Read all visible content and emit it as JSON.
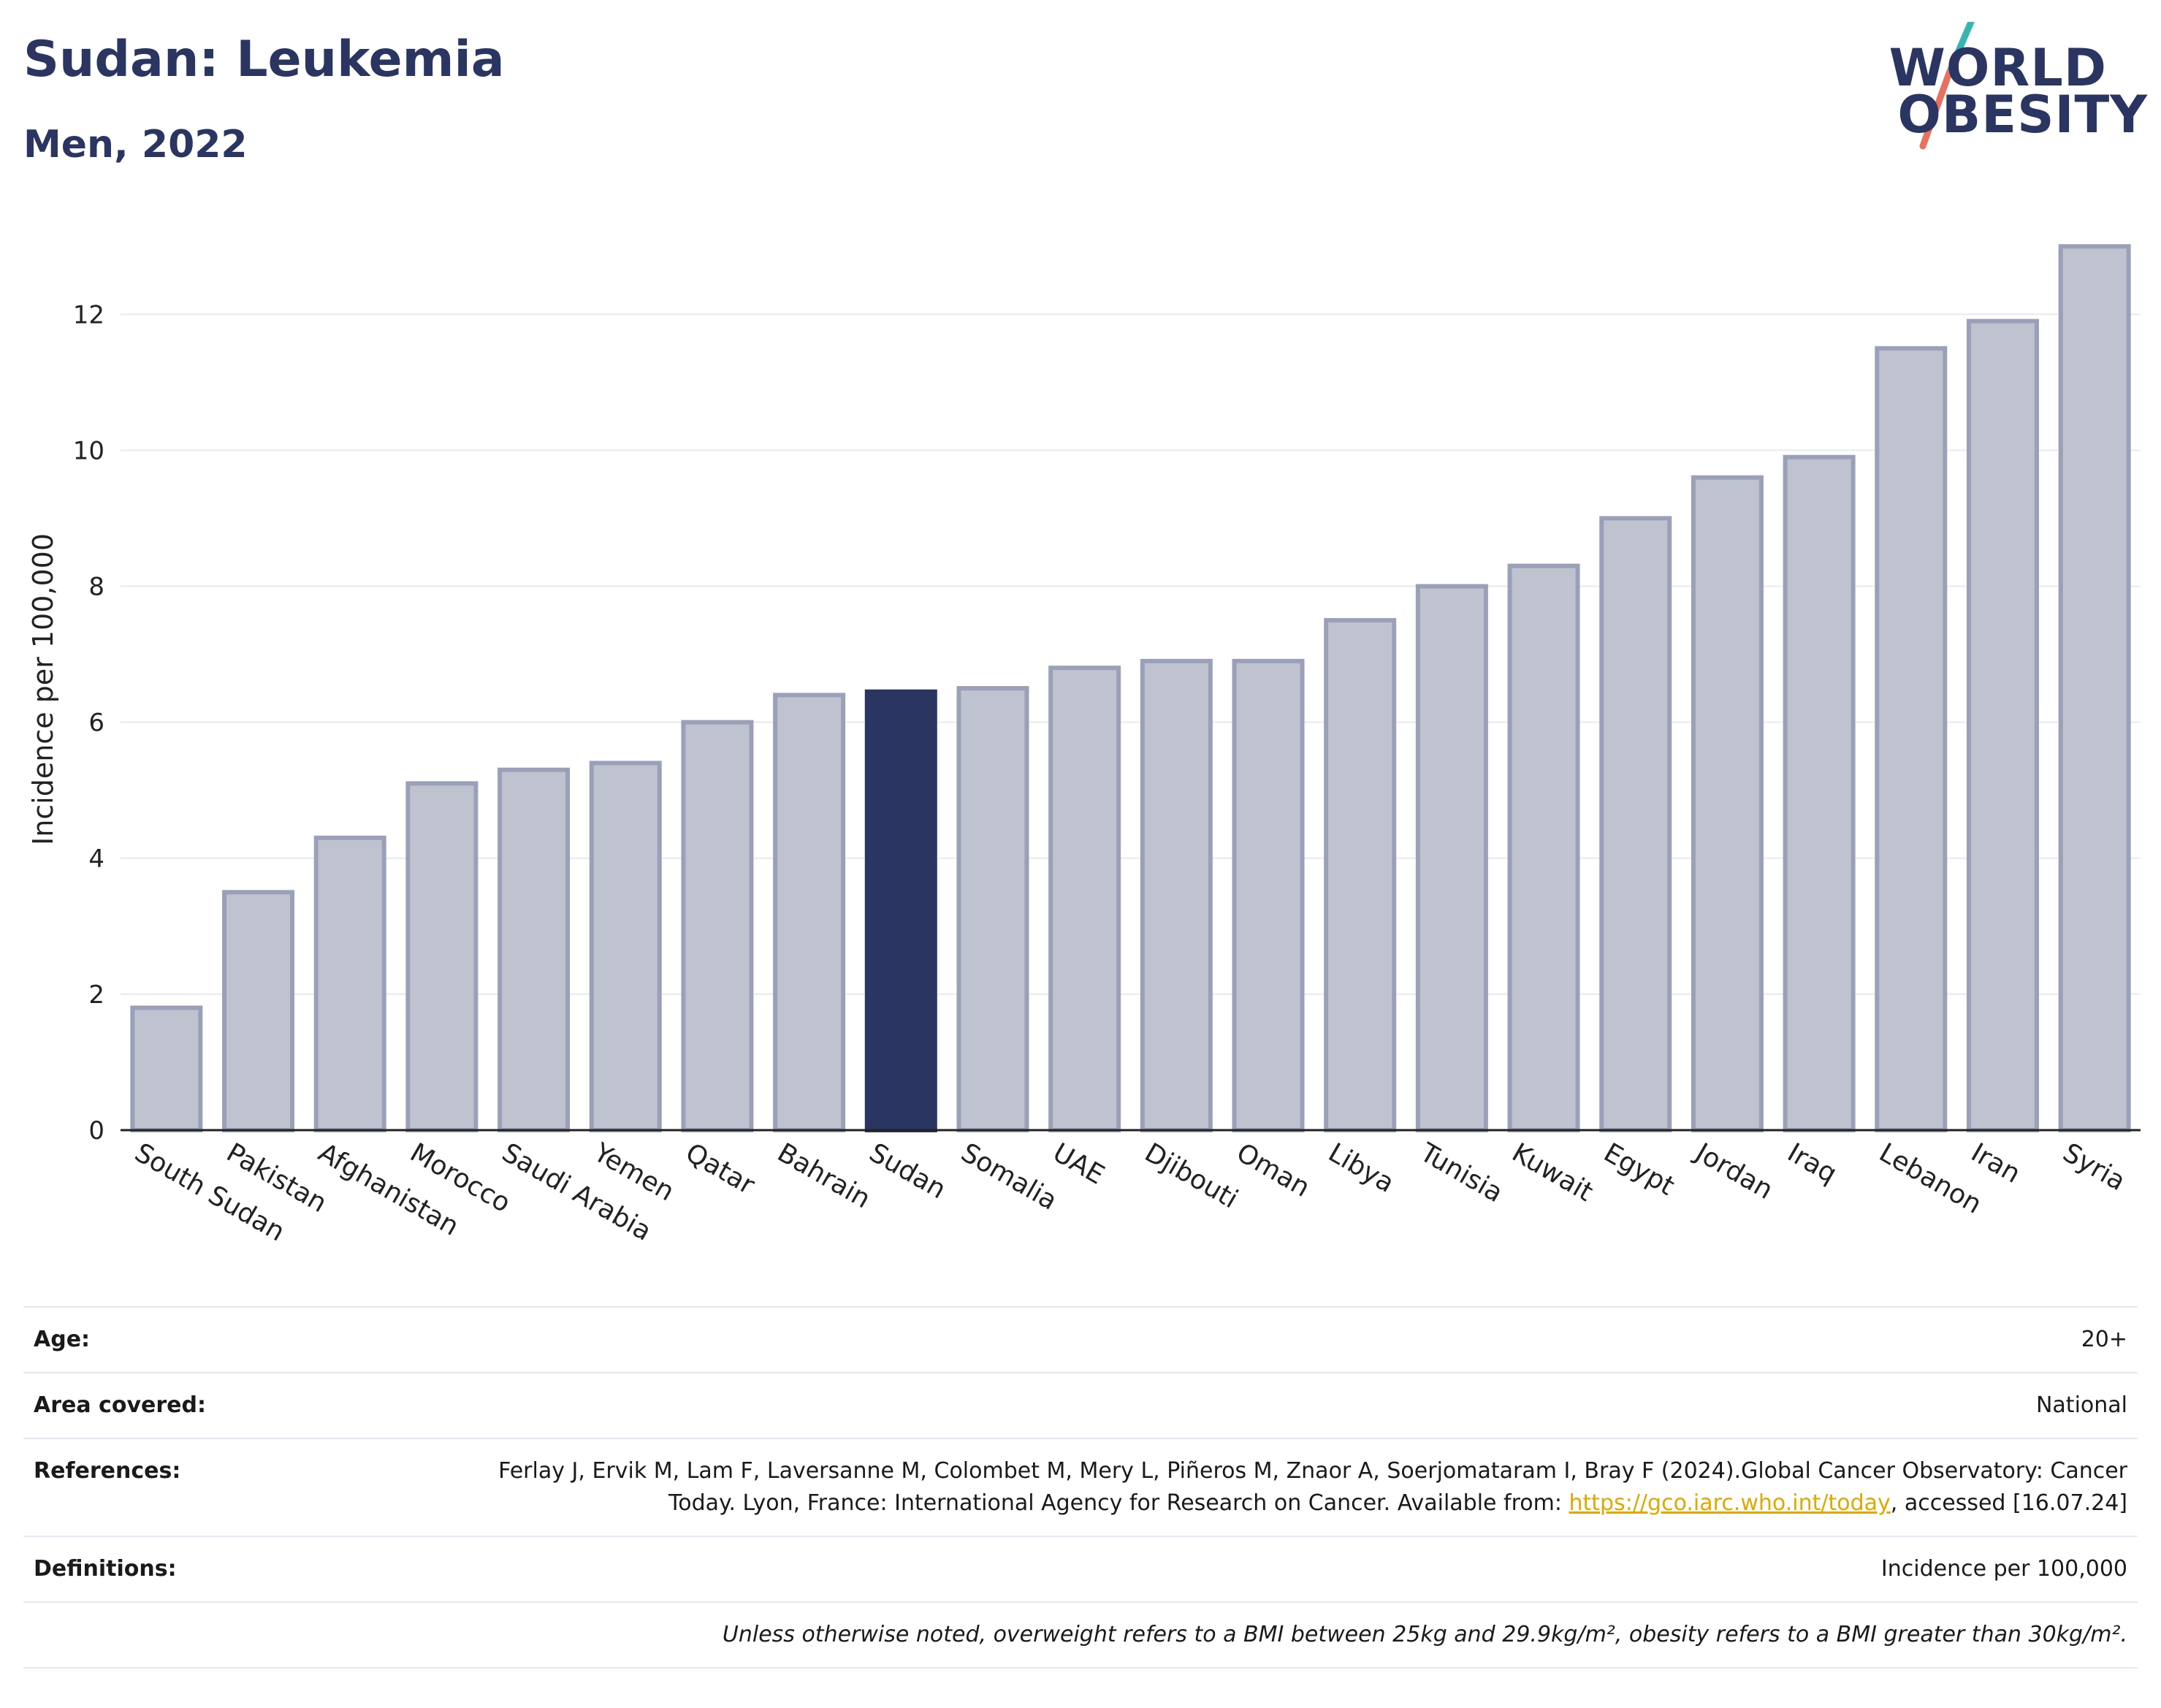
{
  "header": {
    "title": "Sudan: Leukemia",
    "subtitle": "Men, 2022"
  },
  "logo": {
    "line1": "WORLD",
    "line2": "OBESITY",
    "colors": {
      "text": "#2a3561",
      "slash_top": "#35b7b0",
      "slash_bottom": "#e8705f"
    }
  },
  "chart_data": {
    "type": "bar",
    "title": "Sudan: Leukemia",
    "subtitle": "Men, 2022",
    "xlabel": "",
    "ylabel": "Incidence per 100,000",
    "ylim": [
      0,
      13.4
    ],
    "yticks": [
      0,
      2,
      4,
      6,
      8,
      10,
      12
    ],
    "grid": true,
    "highlight": "Sudan",
    "colors": {
      "bar": "#bfc3d0",
      "bar_border": "#9aa0b8",
      "highlight": "#2a3561",
      "grid": "#e8eaf0",
      "axis": "#222222"
    },
    "categories": [
      "South Sudan",
      "Pakistan",
      "Afghanistan",
      "Morocco",
      "Saudi Arabia",
      "Yemen",
      "Qatar",
      "Bahrain",
      "Sudan",
      "Somalia",
      "UAE",
      "Djibouti",
      "Oman",
      "Libya",
      "Tunisia",
      "Kuwait",
      "Egypt",
      "Jordan",
      "Iraq",
      "Lebanon",
      "Iran",
      "Syria"
    ],
    "values": [
      1.8,
      3.5,
      4.3,
      5.1,
      5.3,
      5.4,
      6.0,
      6.4,
      6.45,
      6.5,
      6.8,
      6.9,
      6.9,
      7.5,
      8.0,
      8.3,
      9.0,
      9.6,
      9.9,
      11.5,
      11.9,
      13.0
    ]
  },
  "info": {
    "age_label": "Age:",
    "age_value": "20+",
    "area_label": "Area covered:",
    "area_value": "National",
    "references_label": "References:",
    "references_pre": "Ferlay J, Ervik M, Lam F, Laversanne M, Colombet M, Mery L, Piñeros M, Znaor A, Soerjomataram I, Bray F (2024).Global Cancer Observatory: Cancer Today. Lyon, France: International Agency for Research on Cancer. Available from: ",
    "references_link": "https://gco.iarc.who.int/today",
    "references_post": ", accessed [16.07.24]",
    "definitions_label": "Definitions:",
    "definitions_value": "Incidence per 100,000",
    "note": "Unless otherwise noted, overweight refers to a BMI between 25kg and 29.9kg/m², obesity refers to a BMI greater than 30kg/m²."
  }
}
